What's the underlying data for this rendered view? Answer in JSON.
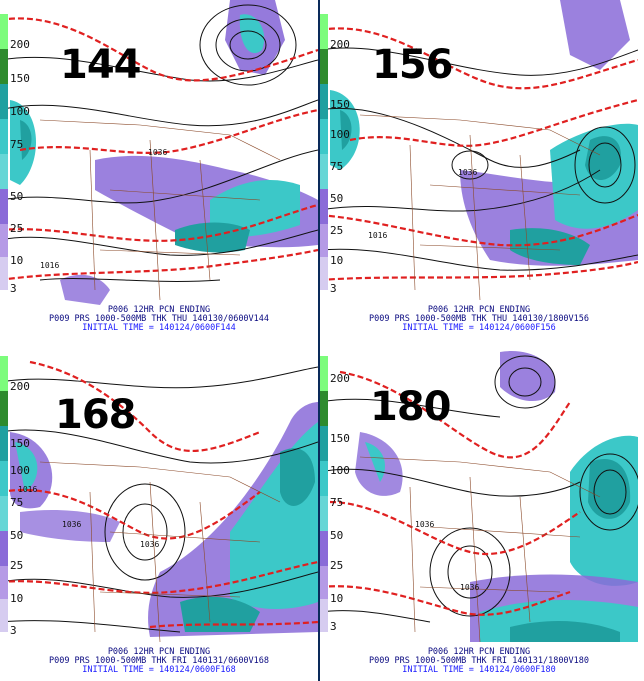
{
  "panels": [
    {
      "forecast_hour": "144",
      "line1": "P006 12HR PCN ENDING",
      "line2": "P009 PRS 1000-500MB THK THU 140130/0600V144",
      "line3": "INITIAL TIME = 140124/0600F144",
      "colorbar_labels": [
        "200",
        "150",
        "100",
        "75",
        "50",
        "25",
        "10",
        "3"
      ],
      "map_labels": [
        {
          "text": "1016"
        },
        {
          "text": "1036"
        }
      ]
    },
    {
      "forecast_hour": "156",
      "line1": "P006 12HR PCN ENDING",
      "line2": "P009 PRS 1000-500MB THK THU 140130/1800V156",
      "line3": "INITIAL TIME = 140124/0600F156",
      "colorbar_labels": [
        "200",
        "150",
        "100",
        "75",
        "50",
        "25",
        "10",
        "3"
      ],
      "map_labels": [
        {
          "text": "1016"
        },
        {
          "text": "1036"
        }
      ]
    },
    {
      "forecast_hour": "168",
      "line1": "P006 12HR PCN ENDING",
      "line2": "P009 PRS 1000-500MB THK FRI 140131/0600V168",
      "line3": "INITIAL TIME = 140124/0600F168",
      "colorbar_labels": [
        "200",
        "150",
        "100",
        "75",
        "50",
        "25",
        "10",
        "3"
      ],
      "map_labels": [
        {
          "text": "1016"
        },
        {
          "text": "1036"
        },
        {
          "text": "1036"
        }
      ]
    },
    {
      "forecast_hour": "180",
      "line1": "P006 12HR PCN ENDING",
      "line2": "P009 PRS 1000-500MB THK FRI 140131/1800V180",
      "line3": "INITIAL TIME = 140124/0600F180",
      "colorbar_labels": [
        "200",
        "150",
        "100",
        "75",
        "50",
        "25",
        "10",
        "3"
      ],
      "map_labels": [
        {
          "text": "1036"
        },
        {
          "text": "1036"
        }
      ]
    }
  ],
  "colors": {
    "precip_light": "#8a6bd8",
    "precip_medium": "#3cc8c8",
    "precip_heavy": "#20a0a0",
    "thickness_line": "#e02020",
    "isobar": "#111111",
    "border": "#8b4a2a",
    "caption": "#0a0a80"
  }
}
